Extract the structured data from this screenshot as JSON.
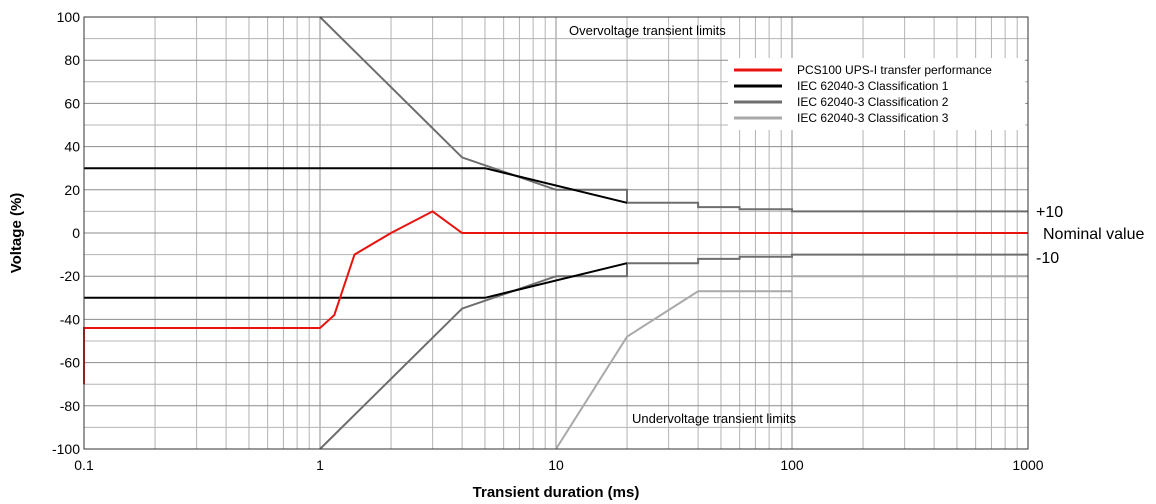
{
  "chart_data": {
    "type": "line",
    "xlabel": "Transient duration (ms)",
    "ylabel": "Voltage (%)",
    "xscale": "log",
    "xlim": [
      0.1,
      1000
    ],
    "ylim": [
      -100,
      100
    ],
    "x_ticks": [
      "0.1",
      "1",
      "10",
      "100",
      "1000"
    ],
    "y_ticks": [
      "100",
      "80",
      "60",
      "40",
      "20",
      "0",
      "-20",
      "-40",
      "-60",
      "-80",
      "-100"
    ],
    "grid": true,
    "legend_position": "top-right",
    "annotations": {
      "overvoltage": "Overvoltage transient limits",
      "undervoltage": "Undervoltage transient limits",
      "plus10": "+10",
      "nominal": "Nominal value",
      "minus10": "-10"
    },
    "series": [
      {
        "name": "PCS100 UPS-I transfer performance",
        "color": "#e8130f",
        "segments": [
          [
            [
              0.1,
              -70
            ],
            [
              0.1,
              -44
            ],
            [
              1,
              -44
            ],
            [
              1.15,
              -38
            ],
            [
              1.4,
              -10
            ],
            [
              2,
              0
            ],
            [
              3,
              10
            ],
            [
              4,
              0
            ],
            [
              1000,
              0
            ]
          ]
        ]
      },
      {
        "name": "IEC 62040-3 Classification 1",
        "color": "#000000",
        "segments": [
          [
            [
              0.1,
              30
            ],
            [
              5,
              30
            ],
            [
              20,
              14
            ]
          ],
          [
            [
              0.1,
              -30
            ],
            [
              5,
              -30
            ],
            [
              20,
              -14
            ]
          ]
        ]
      },
      {
        "name": "IEC 62040-3 Classification 2",
        "color": "#6e6e6e",
        "segments": [
          [
            [
              1,
              100
            ],
            [
              4,
              35
            ],
            [
              10,
              20
            ],
            [
              20,
              20
            ],
            [
              20,
              14
            ],
            [
              40,
              14
            ],
            [
              40,
              12
            ],
            [
              60,
              12
            ],
            [
              60,
              11
            ],
            [
              100,
              11
            ],
            [
              100,
              10
            ],
            [
              1000,
              10
            ]
          ],
          [
            [
              1,
              -100
            ],
            [
              4,
              -35
            ],
            [
              10,
              -20
            ],
            [
              20,
              -20
            ],
            [
              20,
              -14
            ],
            [
              40,
              -14
            ],
            [
              40,
              -12
            ],
            [
              60,
              -12
            ],
            [
              60,
              -11
            ],
            [
              100,
              -11
            ],
            [
              100,
              -10
            ],
            [
              1000,
              -10
            ]
          ]
        ]
      },
      {
        "name": "IEC 62040-3 Classification 3",
        "color": "#a9a9a9",
        "segments": [
          [
            [
              10,
              -100
            ],
            [
              20,
              -48
            ],
            [
              40,
              -27
            ],
            [
              100,
              -27
            ]
          ],
          [
            [
              100,
              -20
            ],
            [
              1000,
              -20
            ]
          ]
        ]
      }
    ]
  }
}
